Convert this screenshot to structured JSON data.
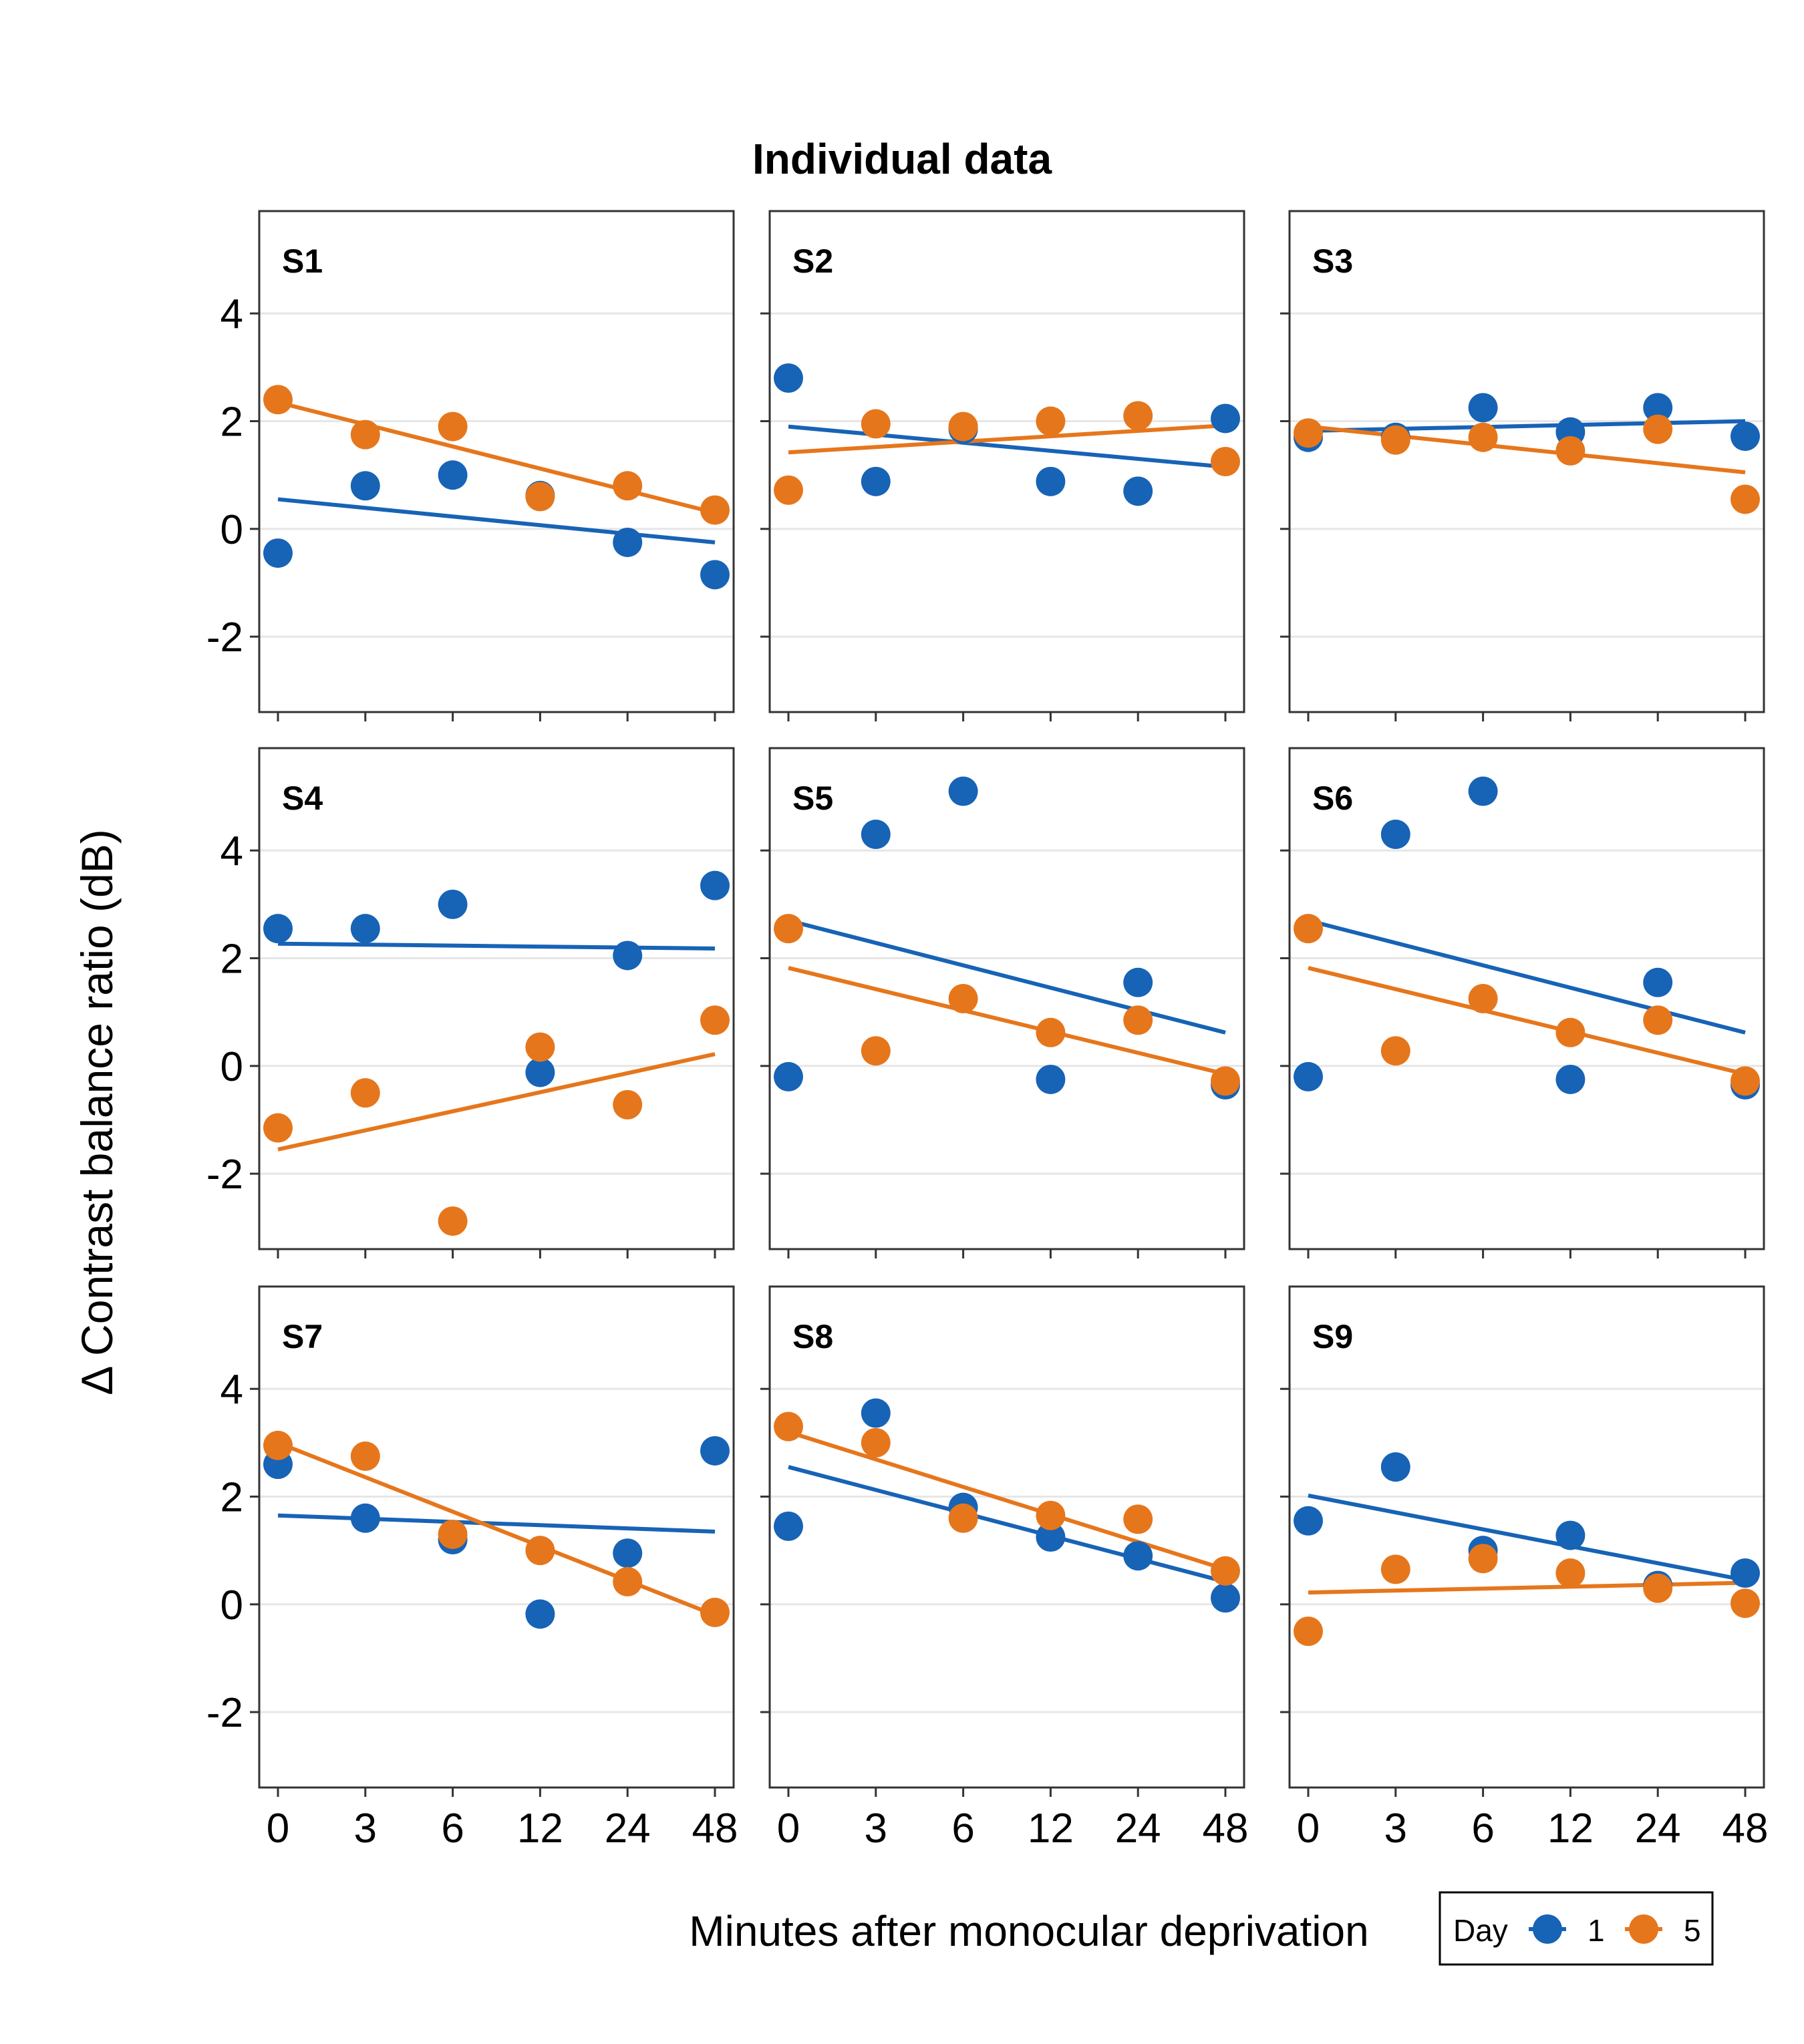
{
  "chart_data": {
    "type": "scatter",
    "title": "Individual data",
    "xlabel": "Minutes after monocular deprivation",
    "ylabel": "Δ Contrast balance ratio (dB)",
    "x_categories": [
      "0",
      "3",
      "6",
      "12",
      "24",
      "48"
    ],
    "y_ticks": [
      -2,
      0,
      2,
      4
    ],
    "ylim": [
      -3.4,
      5.9
    ],
    "grid": "horizontal",
    "legend": {
      "title": "Day",
      "position": "bottom-right",
      "entries": [
        {
          "label": "1",
          "color": "#1763b6"
        },
        {
          "label": "5",
          "color": "#e6761c"
        }
      ]
    },
    "colors": {
      "day1": "#1763b6",
      "day5": "#e6761c"
    },
    "panels": [
      {
        "label": "S1",
        "day1": {
          "values": [
            -0.45,
            0.8,
            1.0,
            0.62,
            -0.25,
            -0.85
          ],
          "fit": [
            0.55,
            -0.25
          ]
        },
        "day5": {
          "values": [
            2.4,
            1.75,
            1.9,
            0.6,
            0.8,
            0.35
          ],
          "fit": [
            2.35,
            0.3
          ]
        }
      },
      {
        "label": "S2",
        "day1": {
          "values": [
            2.8,
            0.88,
            1.85,
            0.88,
            0.7,
            2.05
          ],
          "fit": [
            1.9,
            1.15
          ]
        },
        "day5": {
          "values": [
            0.72,
            1.95,
            1.9,
            2.0,
            2.1,
            1.25
          ],
          "fit": [
            1.42,
            1.92
          ]
        }
      },
      {
        "label": "S3",
        "day1": {
          "values": [
            1.7,
            1.7,
            2.25,
            1.8,
            2.25,
            1.72
          ],
          "fit": [
            1.82,
            2.0
          ]
        },
        "day5": {
          "values": [
            1.78,
            1.65,
            1.7,
            1.45,
            1.85,
            0.55
          ],
          "fit": [
            1.9,
            1.05
          ]
        }
      },
      {
        "label": "S4",
        "day1": {
          "values": [
            2.55,
            2.55,
            3.0,
            -0.12,
            2.05,
            3.35
          ],
          "fit": [
            2.27,
            2.18
          ]
        },
        "day5": {
          "values": [
            -1.15,
            -0.5,
            -2.88,
            0.35,
            -0.72,
            0.85
          ],
          "fit": [
            -1.55,
            0.22
          ]
        }
      },
      {
        "label": "S5",
        "day1": {
          "values": [
            -0.2,
            4.3,
            5.1,
            -0.25,
            1.55,
            -0.35
          ],
          "fit": [
            2.7,
            0.62
          ]
        },
        "day5": {
          "values": [
            2.55,
            0.28,
            1.25,
            0.62,
            0.85,
            -0.28
          ],
          "fit": [
            1.82,
            -0.15
          ]
        }
      },
      {
        "label": "S6",
        "day1": {
          "values": [
            -0.2,
            4.3,
            5.1,
            -0.25,
            1.55,
            -0.35
          ],
          "fit": [
            2.7,
            0.62
          ]
        },
        "day5": {
          "values": [
            2.55,
            0.28,
            1.25,
            0.62,
            0.85,
            -0.28
          ],
          "fit": [
            1.82,
            -0.15
          ]
        }
      },
      {
        "label": "S7",
        "day1": {
          "values": [
            2.6,
            1.6,
            1.2,
            -0.18,
            0.95,
            2.85
          ],
          "fit": [
            1.65,
            1.35
          ]
        },
        "day5": {
          "values": [
            2.95,
            2.75,
            1.3,
            1.0,
            0.42,
            -0.15
          ],
          "fit": [
            3.0,
            -0.2
          ]
        }
      },
      {
        "label": "S8",
        "day1": {
          "values": [
            1.45,
            3.55,
            1.8,
            1.25,
            0.9,
            0.12
          ],
          "fit": [
            2.55,
            0.42
          ]
        },
        "day5": {
          "values": [
            3.3,
            3.0,
            1.6,
            1.65,
            1.58,
            0.62
          ],
          "fit": [
            3.2,
            0.65
          ]
        }
      },
      {
        "label": "S9",
        "day1": {
          "values": [
            1.55,
            2.55,
            1.0,
            1.28,
            0.35,
            0.58
          ],
          "fit": [
            2.02,
            0.45
          ]
        },
        "day5": {
          "values": [
            -0.5,
            0.65,
            0.85,
            0.58,
            0.3,
            0.02
          ],
          "fit": [
            0.22,
            0.4
          ]
        }
      }
    ]
  }
}
